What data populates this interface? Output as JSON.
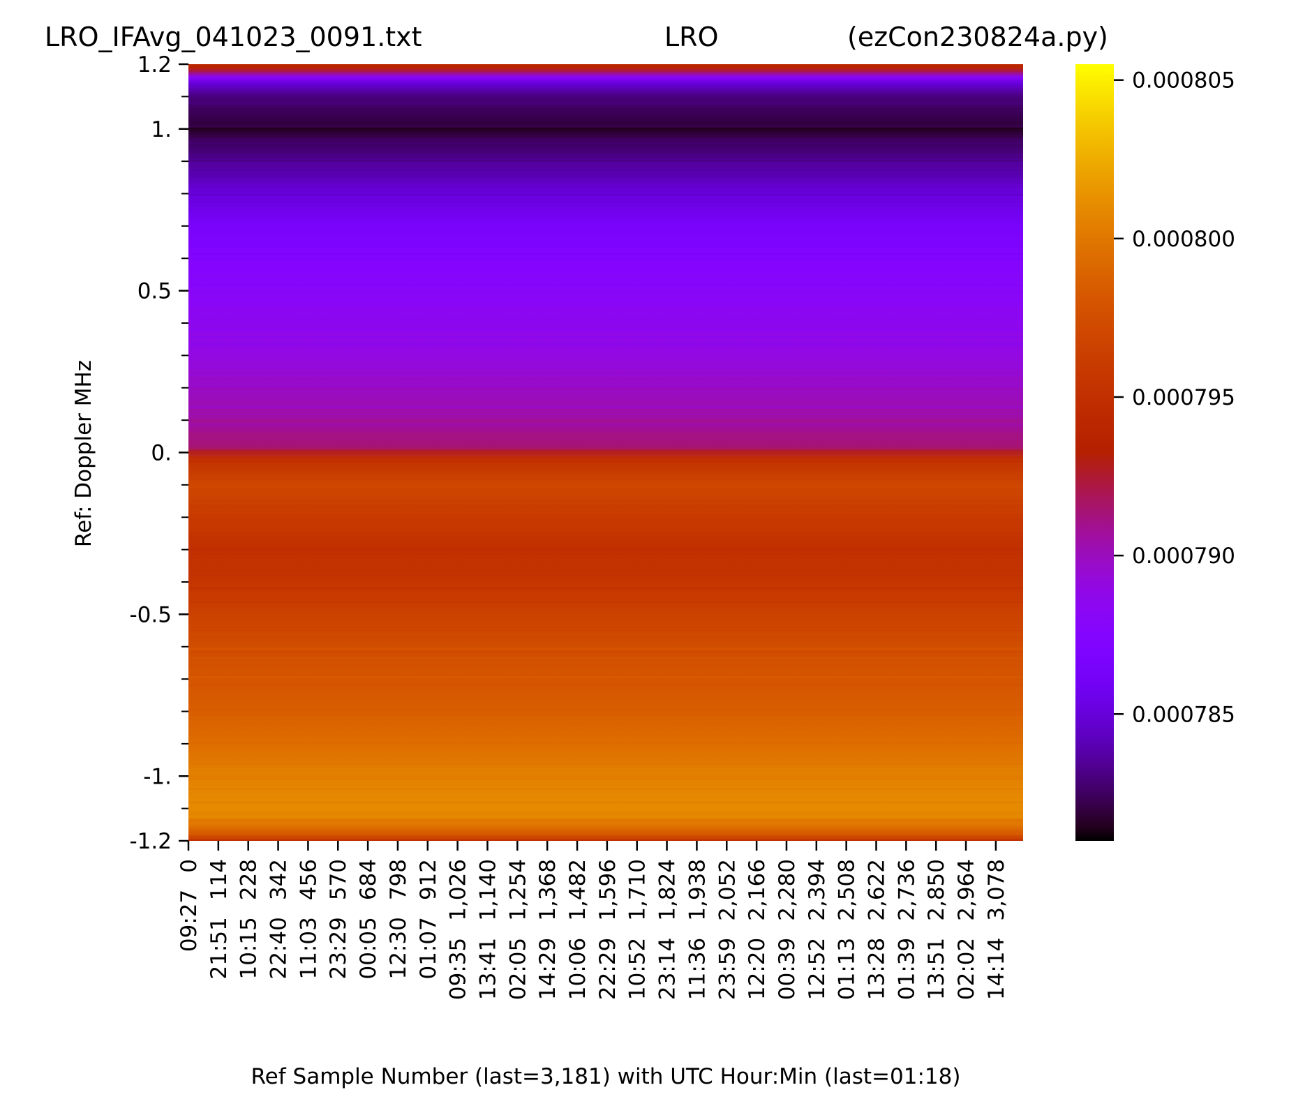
{
  "chart_data": {
    "type": "heatmap",
    "title_parts": [
      "LRO_IFAvg_041023_0091.txt",
      "LRO",
      "(ezCon230824a.py)"
    ],
    "xlabel": "Ref Sample Number (last=3,181) with UTC Hour:Min (last=01:18)",
    "ylabel": "Ref:  Doppler MHz",
    "x_range": [
      0,
      3182
    ],
    "y_range": [
      -1.2,
      1.2
    ],
    "y_ticks": [
      {
        "value": 1.2,
        "label": "1.2"
      },
      {
        "value": 1.0,
        "label": "1."
      },
      {
        "value": 0.5,
        "label": "0.5"
      },
      {
        "value": 0.0,
        "label": "0."
      },
      {
        "value": -0.5,
        "label": "-0.5"
      },
      {
        "value": -1.0,
        "label": "-1."
      },
      {
        "value": -1.2,
        "label": "-1.2"
      }
    ],
    "y_minor_step": 0.1,
    "x_ticks": [
      {
        "value": 0,
        "label": "0",
        "time": "09:27"
      },
      {
        "value": 114,
        "label": "114",
        "time": "21:51"
      },
      {
        "value": 228,
        "label": "228",
        "time": "10:15"
      },
      {
        "value": 342,
        "label": "342",
        "time": "22:40"
      },
      {
        "value": 456,
        "label": "456",
        "time": "11:03"
      },
      {
        "value": 570,
        "label": "570",
        "time": "23:29"
      },
      {
        "value": 684,
        "label": "684",
        "time": "00:05"
      },
      {
        "value": 798,
        "label": "798",
        "time": "12:30"
      },
      {
        "value": 912,
        "label": "912",
        "time": "01:07"
      },
      {
        "value": 1026,
        "label": "1,026",
        "time": "09:35"
      },
      {
        "value": 1140,
        "label": "1,140",
        "time": "13:41"
      },
      {
        "value": 1254,
        "label": "1,254",
        "time": "02:05"
      },
      {
        "value": 1368,
        "label": "1,368",
        "time": "14:29"
      },
      {
        "value": 1482,
        "label": "1,482",
        "time": "10:06"
      },
      {
        "value": 1596,
        "label": "1,596",
        "time": "22:29"
      },
      {
        "value": 1710,
        "label": "1,710",
        "time": "10:52"
      },
      {
        "value": 1824,
        "label": "1,824",
        "time": "23:14"
      },
      {
        "value": 1938,
        "label": "1,938",
        "time": "11:36"
      },
      {
        "value": 2052,
        "label": "2,052",
        "time": "23:59"
      },
      {
        "value": 2166,
        "label": "2,166",
        "time": "12:20"
      },
      {
        "value": 2280,
        "label": "2,280",
        "time": "00:39"
      },
      {
        "value": 2394,
        "label": "2,394",
        "time": "12:52"
      },
      {
        "value": 2508,
        "label": "2,508",
        "time": "01:13"
      },
      {
        "value": 2622,
        "label": "2,622",
        "time": "13:28"
      },
      {
        "value": 2736,
        "label": "2,736",
        "time": "01:39"
      },
      {
        "value": 2850,
        "label": "2,850",
        "time": "13:51"
      },
      {
        "value": 2964,
        "label": "2,964",
        "time": "02:02"
      },
      {
        "value": 3078,
        "label": "3,078",
        "time": "14:14"
      }
    ],
    "colorbar": {
      "colormap": "gnuplot",
      "min": 0.000781,
      "max": 0.0008055,
      "ticks": [
        {
          "value": 0.000785,
          "label": "0.000785"
        },
        {
          "value": 0.00079,
          "label": "0.000790"
        },
        {
          "value": 0.000795,
          "label": "0.000795"
        },
        {
          "value": 0.0008,
          "label": "0.000800"
        },
        {
          "value": 0.000805,
          "label": "0.000805"
        }
      ]
    },
    "row_profile": [
      {
        "y": 1.2,
        "value": 0.000794
      },
      {
        "y": 1.19,
        "value": 0.000794
      },
      {
        "y": 1.18,
        "value": 0.000792
      },
      {
        "y": 1.16,
        "value": 0.000788
      },
      {
        "y": 1.14,
        "value": 0.000785
      },
      {
        "y": 1.1,
        "value": 0.000783
      },
      {
        "y": 1.0,
        "value": 0.0007818
      },
      {
        "y": 0.9,
        "value": 0.0007835
      },
      {
        "y": 0.8,
        "value": 0.000785
      },
      {
        "y": 0.7,
        "value": 0.0007865
      },
      {
        "y": 0.6,
        "value": 0.0007875
      },
      {
        "y": 0.5,
        "value": 0.000788
      },
      {
        "y": 0.4,
        "value": 0.0007885
      },
      {
        "y": 0.3,
        "value": 0.000789
      },
      {
        "y": 0.2,
        "value": 0.0007898
      },
      {
        "y": 0.1,
        "value": 0.0007905
      },
      {
        "y": 0.02,
        "value": 0.0007915
      },
      {
        "y": -0.02,
        "value": 0.000795
      },
      {
        "y": -0.1,
        "value": 0.000797
      },
      {
        "y": -0.2,
        "value": 0.000796
      },
      {
        "y": -0.3,
        "value": 0.000795
      },
      {
        "y": -0.4,
        "value": 0.0007955
      },
      {
        "y": -0.5,
        "value": 0.0007965
      },
      {
        "y": -0.6,
        "value": 0.0007975
      },
      {
        "y": -0.7,
        "value": 0.000798
      },
      {
        "y": -0.8,
        "value": 0.0007985
      },
      {
        "y": -0.9,
        "value": 0.0007995
      },
      {
        "y": -1.0,
        "value": 0.0008005
      },
      {
        "y": -1.1,
        "value": 0.000801
      },
      {
        "y": -1.15,
        "value": 0.0008
      },
      {
        "y": -1.18,
        "value": 0.000798
      },
      {
        "y": -1.2,
        "value": 0.000795
      }
    ]
  }
}
